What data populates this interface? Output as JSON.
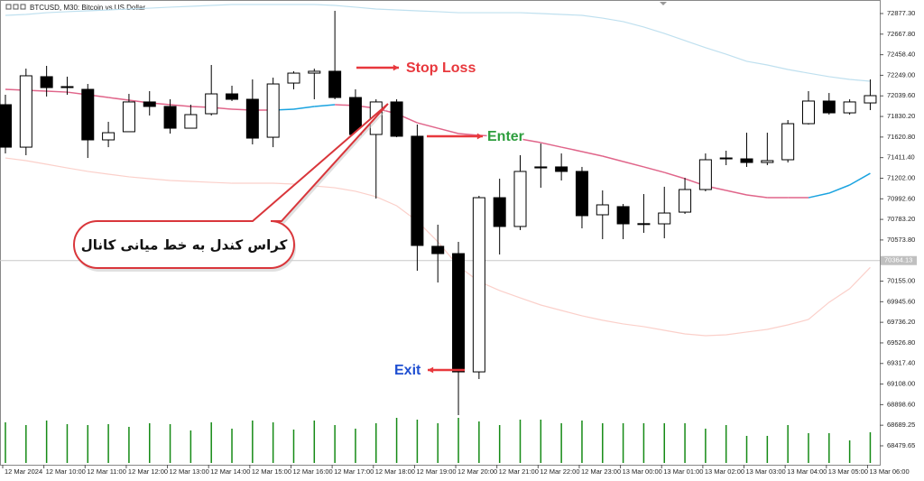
{
  "chart_data": {
    "type": "candlestick",
    "title": "BTCUSD, M30: Bitcoin vs US Dollar",
    "categories": [
      "12 Mar 2024",
      null,
      "12 Mar 10:00",
      null,
      "12 Mar 11:00",
      null,
      "12 Mar 12:00",
      null,
      "12 Mar 13:00",
      null,
      "12 Mar 14:00",
      null,
      "12 Mar 15:00",
      null,
      "12 Mar 16:00",
      null,
      "12 Mar 17:00",
      null,
      "12 Mar 18:00",
      null,
      "12 Mar 19:00",
      null,
      "12 Mar 20:00",
      null,
      "12 Mar 21:00",
      null,
      "12 Mar 22:00",
      null,
      "12 Mar 23:00",
      null,
      "13 Mar 00:00",
      null,
      "13 Mar 01:00",
      null,
      "13 Mar 02:00",
      null,
      "13 Mar 03:00",
      null,
      "13 Mar 04:00",
      null,
      "13 Mar 05:00",
      null,
      "13 Mar 06:00"
    ],
    "open": [
      71950,
      71518,
      72235,
      72134,
      72106,
      71592,
      71675,
      71978,
      71932,
      71711,
      71858,
      72060,
      72005,
      71619,
      72170,
      72271,
      72290,
      72023,
      71647,
      71978,
      71629,
      70509,
      70435,
      69232,
      71004,
      70711,
      71317,
      71317,
      71271,
      70830,
      70913,
      70738,
      70738,
      70857,
      71087,
      71408,
      71399,
      71362,
      71390,
      71757,
      71987,
      71867,
      71968
    ],
    "high": [
      72051,
      72317,
      72345,
      72235,
      72161,
      71776,
      72060,
      72088,
      72005,
      71950,
      72354,
      72143,
      72207,
      72225,
      72290,
      72317,
      72905,
      72106,
      72005,
      72005,
      71748,
      70729,
      70555,
      71023,
      71197,
      71436,
      71555,
      71454,
      71317,
      71078,
      70940,
      71041,
      71115,
      71206,
      71454,
      71482,
      71665,
      71665,
      71794,
      72088,
      72069,
      72005,
      72207
    ],
    "low": [
      71454,
      71436,
      72033,
      72051,
      71408,
      71518,
      71675,
      71840,
      71656,
      71711,
      71840,
      71987,
      71546,
      71518,
      72106,
      72005,
      72005,
      71638,
      70995,
      71619,
      70261,
      70141,
      68792,
      69159,
      70426,
      70674,
      71105,
      71179,
      70692,
      70582,
      70582,
      70646,
      70591,
      70839,
      71069,
      71335,
      71317,
      71335,
      71362,
      71748,
      71849,
      71849,
      71895
    ],
    "close": [
      71518,
      72244,
      72124,
      72124,
      71592,
      71665,
      71978,
      71932,
      71711,
      71849,
      72060,
      72005,
      71610,
      72161,
      72271,
      72290,
      72023,
      71647,
      71978,
      71629,
      70518,
      70435,
      69232,
      71004,
      70711,
      71271,
      71307,
      71271,
      70821,
      70931,
      70738,
      70740,
      70848,
      71087,
      71390,
      71399,
      71362,
      71381,
      71757,
      71987,
      71867,
      71978,
      72042
    ],
    "up_color": "#ffffff",
    "down_color": "#000000",
    "volume": [
      45,
      42,
      47,
      43,
      42,
      43,
      40,
      44,
      43,
      36,
      45,
      38,
      47,
      45,
      37,
      47,
      42,
      38,
      44,
      50,
      48,
      44,
      50,
      46,
      42,
      48,
      48,
      44,
      47,
      44,
      44,
      44,
      44,
      44,
      38,
      42,
      30,
      30,
      42,
      33,
      33,
      25,
      34
    ],
    "volume_color": "#158a15",
    "bands": {
      "upper": [
        72859,
        72868,
        72886,
        72896,
        72905,
        72914,
        72923,
        72932,
        72942,
        72951,
        72960,
        72969,
        72969,
        72969,
        72969,
        72969,
        72960,
        72942,
        72923,
        72914,
        72905,
        72896,
        72886,
        72886,
        72886,
        72886,
        72877,
        72868,
        72859,
        72831,
        72795,
        72740,
        72675,
        72602,
        72530,
        72464,
        72391,
        72354,
        72308,
        72271,
        72235,
        72207,
        72189
      ],
      "middle": [
        72106,
        72097,
        72088,
        72078,
        72051,
        72023,
        71996,
        71968,
        71950,
        71932,
        71923,
        71904,
        71895,
        71895,
        71904,
        71932,
        71950,
        71941,
        71913,
        71858,
        71766,
        71711,
        71656,
        71638,
        71629,
        71601,
        71564,
        71518,
        71473,
        71427,
        71372,
        71317,
        71261,
        71197,
        71124,
        71078,
        71032,
        71004,
        71004,
        71004,
        71050,
        71133,
        71252
      ],
      "lower": [
        71408,
        71381,
        71344,
        71307,
        71271,
        71243,
        71216,
        71197,
        71179,
        71170,
        71160,
        71151,
        71151,
        71151,
        71142,
        71124,
        71105,
        71069,
        71014,
        70922,
        70766,
        70555,
        70307,
        70151,
        70059,
        69985,
        69912,
        69857,
        69802,
        69757,
        69720,
        69692,
        69655,
        69618,
        69600,
        69609,
        69637,
        69664,
        69710,
        69765,
        69940,
        70078,
        70295
      ],
      "upper_color": "#bfe0ef",
      "lower_color": "#fbd0ca",
      "middle_rising_color": "#1aa3e0",
      "middle_falling_color": "#e0658a"
    },
    "ylim": [
      68287,
      73015
    ],
    "yticks": [
      {
        "value": 72877.3,
        "label": "72877.30"
      },
      {
        "value": 72667.8,
        "label": "72667.80"
      },
      {
        "value": 72458.4,
        "label": "72458.40"
      },
      {
        "value": 72249.0,
        "label": "72249.00"
      },
      {
        "value": 72039.6,
        "label": "72039.60"
      },
      {
        "value": 71830.2,
        "label": "71830.20"
      },
      {
        "value": 71620.8,
        "label": "71620.80"
      },
      {
        "value": 71411.4,
        "label": "71411.40"
      },
      {
        "value": 71202.0,
        "label": "71202.00"
      },
      {
        "value": 70992.6,
        "label": "70992.60"
      },
      {
        "value": 70783.2,
        "label": "70783.20"
      },
      {
        "value": 70573.8,
        "label": "70573.80"
      },
      {
        "value": 70155.0,
        "label": "70155.00"
      },
      {
        "value": 69945.6,
        "label": "69945.60"
      },
      {
        "value": 69736.2,
        "label": "69736.20"
      },
      {
        "value": 69526.8,
        "label": "69526.80"
      },
      {
        "value": 69317.4,
        "label": "69317.40"
      },
      {
        "value": 69108.0,
        "label": "69108.00"
      },
      {
        "value": 68898.6,
        "label": "68898.60"
      },
      {
        "value": 68689.25,
        "label": "68689.25"
      },
      {
        "value": 68479.65,
        "label": "68479.65"
      }
    ],
    "current_price": {
      "value": 70364.13,
      "label": "70364.13"
    },
    "grid": false,
    "annotations": {
      "stop_loss": {
        "text": "Stop Loss",
        "color": "#e8383d"
      },
      "enter": {
        "text": "Enter",
        "color": "#2e9e3e"
      },
      "exit": {
        "text": "Exit",
        "color": "#1f4fd1"
      },
      "callout": {
        "text": "کراس کندل به خط میانی کانال",
        "color": "#d9363b"
      }
    }
  }
}
